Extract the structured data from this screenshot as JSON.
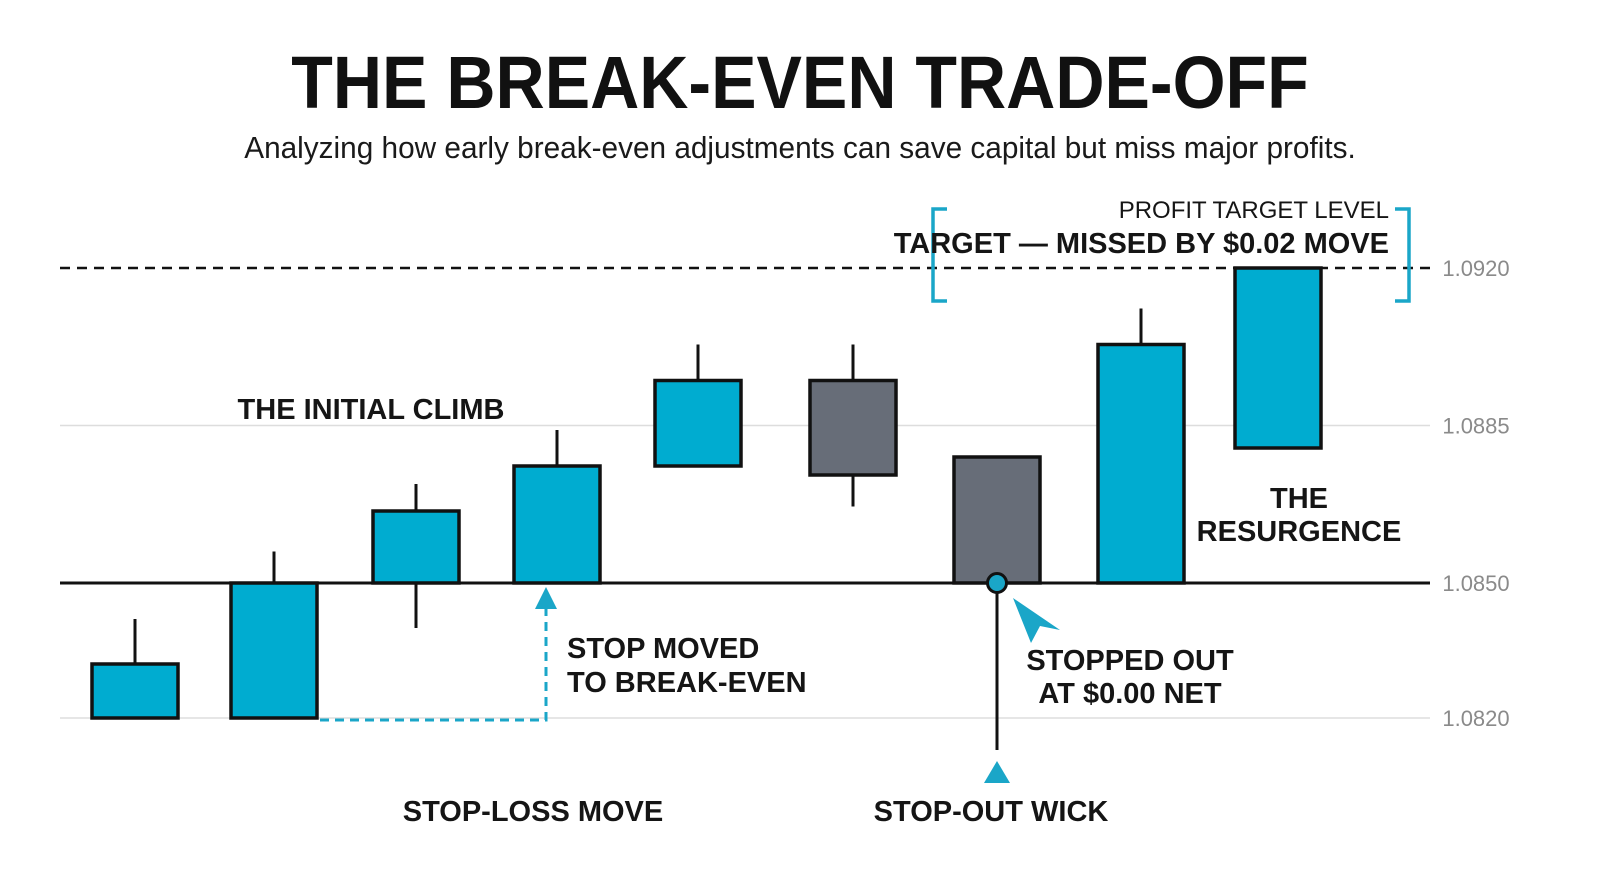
{
  "title": "THE BREAK-EVEN TRADE-OFF",
  "subtitle": "Analyzing how early break-even adjustments can save capital but miss major profits.",
  "colors": {
    "bullish": "#00acd0",
    "bearish": "#676d78",
    "outline": "#111111",
    "accent": "#1aa6c8",
    "grid": "#dddddd"
  },
  "chart_data": {
    "type": "candlestick",
    "ylim": [
      1.0808,
      1.0937
    ],
    "y_ticks": [
      "1.0920",
      "1.0885",
      "1.0850",
      "1.0820"
    ],
    "y_tick_values": [
      1.092,
      1.0885,
      1.085,
      1.082
    ],
    "break_even_level": 1.085,
    "target_level": 1.092,
    "candles": [
      {
        "open": 1.082,
        "close": 1.0832,
        "high": 1.0842,
        "low": 1.082,
        "dir": "up"
      },
      {
        "open": 1.082,
        "close": 1.085,
        "high": 1.0857,
        "low": 1.082,
        "dir": "up"
      },
      {
        "open": 1.085,
        "close": 1.0866,
        "high": 1.0872,
        "low": 1.084,
        "dir": "up"
      },
      {
        "open": 1.085,
        "close": 1.0876,
        "high": 1.0884,
        "low": 1.085,
        "dir": "up"
      },
      {
        "open": 1.0876,
        "close": 1.0895,
        "high": 1.0903,
        "low": 1.0876,
        "dir": "up"
      },
      {
        "open": 1.0895,
        "close": 1.0874,
        "high": 1.0903,
        "low": 1.0867,
        "dir": "down"
      },
      {
        "open": 1.0878,
        "close": 1.085,
        "high": 1.0878,
        "low": 1.082,
        "dir": "down"
      },
      {
        "open": 1.085,
        "close": 1.0903,
        "high": 1.0911,
        "low": 1.085,
        "dir": "up"
      },
      {
        "open": 1.088,
        "close": 1.092,
        "high": 1.092,
        "low": 1.088,
        "dir": "up"
      }
    ],
    "annotations": {
      "initial_climb": "THE INITIAL CLIMB",
      "stop_moved_1": "STOP MOVED",
      "stop_moved_2": "TO BREAK-EVEN",
      "stopped_out_1": "STOPPED OUT",
      "stopped_out_2": "AT $0.00 NET",
      "resurgence_1": "THE",
      "resurgence_2": "RESURGENCE",
      "profit_target_level": "PROFIT TARGET LEVEL",
      "target_missed": "TARGET — MISSED BY $0.02 MOVE",
      "stop_loss_move": "STOP-LOSS MOVE",
      "stop_out_wick": "STOP-OUT WICK"
    }
  }
}
